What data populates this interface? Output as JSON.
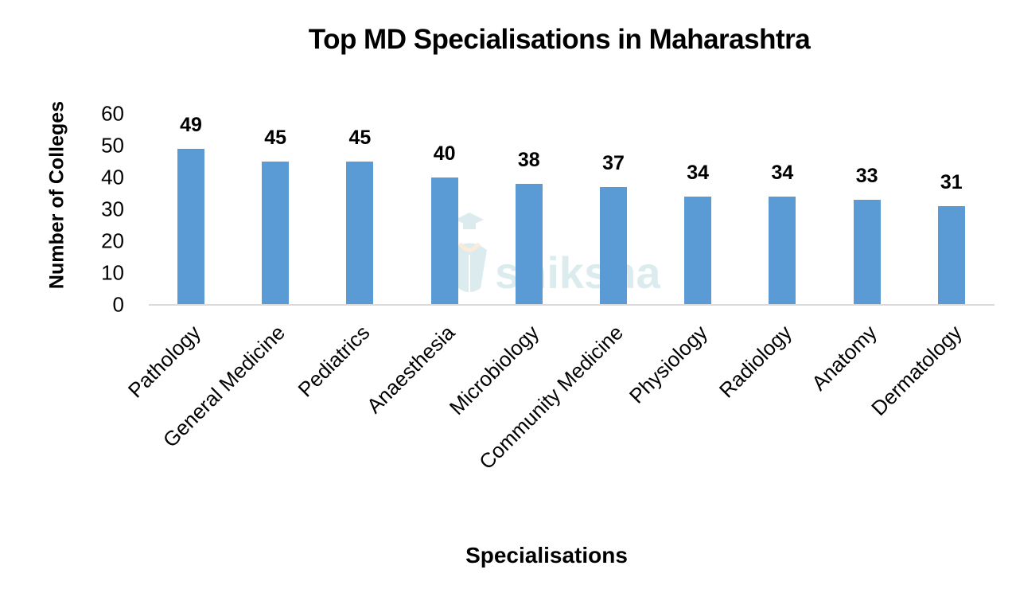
{
  "chart_data": {
    "type": "bar",
    "title": "Top MD Specialisations in Maharashtra",
    "xlabel": "Specialisations",
    "ylabel": "Number of Colleges",
    "ylim": [
      0,
      60
    ],
    "yticks": [
      "0",
      "10",
      "20",
      "30",
      "40",
      "50",
      "60"
    ],
    "grid": false,
    "legend": null,
    "bar_color": "#5b9bd5",
    "categories": [
      "Pathology",
      "General Medicine",
      "Pediatrics",
      "Anaesthesia",
      "Microbiology",
      "Community Medicine",
      "Physiology",
      "Radiology",
      "Anatomy",
      "Dermatology"
    ],
    "values": [
      49,
      45,
      45,
      40,
      38,
      37,
      34,
      34,
      33,
      31
    ],
    "data_labels": [
      "49",
      "45",
      "45",
      "40",
      "38",
      "37",
      "34",
      "34",
      "33",
      "31"
    ]
  },
  "watermark": {
    "text": "shiksha",
    "icon": "graduate-cap-icon",
    "color": "#a8d4d8"
  }
}
